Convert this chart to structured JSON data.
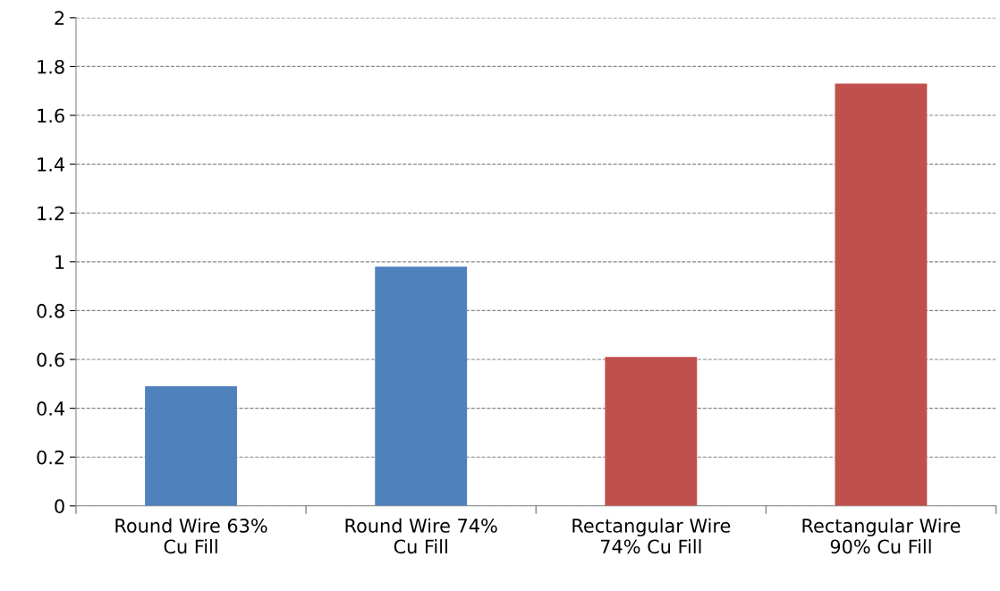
{
  "chart_data": {
    "type": "bar",
    "categories": [
      "Round Wire 63%\nCu Fill",
      "Round Wire 74%\nCu Fill",
      "Rectangular Wire\n74% Cu Fill",
      "Rectangular Wire\n90% Cu Fill"
    ],
    "values": [
      0.49,
      0.98,
      0.61,
      1.73
    ],
    "colors": [
      "#4f81bd",
      "#4f81bd",
      "#c0504d",
      "#c0504d"
    ],
    "ylim": [
      0,
      2
    ],
    "yticks": [
      0,
      0.2,
      0.4,
      0.6,
      0.8,
      1,
      1.2,
      1.4,
      1.6,
      1.8,
      2
    ],
    "grid": "y"
  }
}
